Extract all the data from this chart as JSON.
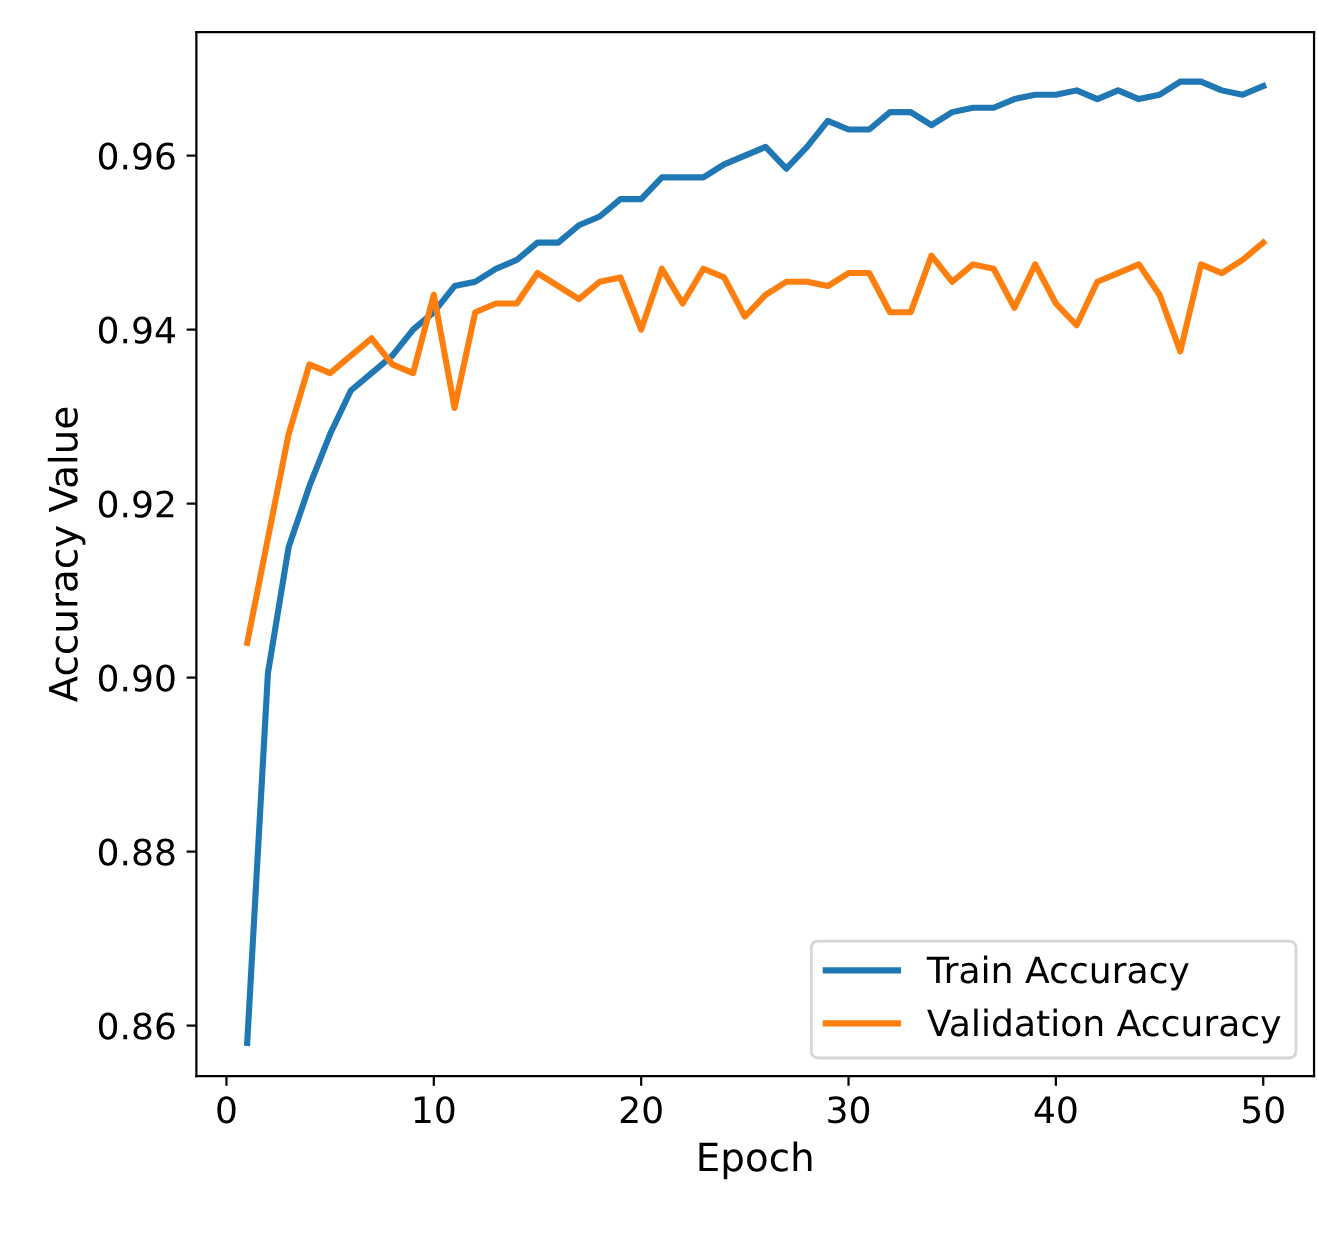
{
  "chart_data": {
    "type": "line",
    "xlabel": "Epoch",
    "ylabel": "Accuracy Value",
    "x": [
      1,
      2,
      3,
      4,
      5,
      6,
      7,
      8,
      9,
      10,
      11,
      12,
      13,
      14,
      15,
      16,
      17,
      18,
      19,
      20,
      21,
      22,
      23,
      24,
      25,
      26,
      27,
      28,
      29,
      30,
      31,
      32,
      33,
      34,
      35,
      36,
      37,
      38,
      39,
      40,
      41,
      42,
      43,
      44,
      45,
      46,
      47,
      48,
      49,
      50
    ],
    "series": [
      {
        "name": "Train Accuracy",
        "color": "#1f77b4",
        "values": [
          0.858,
          0.9005,
          0.915,
          0.922,
          0.928,
          0.933,
          0.935,
          0.937,
          0.94,
          0.942,
          0.945,
          0.9455,
          0.947,
          0.948,
          0.95,
          0.95,
          0.952,
          0.953,
          0.955,
          0.955,
          0.9575,
          0.9575,
          0.9575,
          0.959,
          0.96,
          0.961,
          0.9585,
          0.961,
          0.964,
          0.963,
          0.963,
          0.965,
          0.965,
          0.9635,
          0.965,
          0.9655,
          0.9655,
          0.9665,
          0.967,
          0.967,
          0.9675,
          0.9665,
          0.9675,
          0.9665,
          0.967,
          0.9685,
          0.9685,
          0.9675,
          0.967,
          0.968
        ]
      },
      {
        "name": "Validation Accuracy",
        "color": "#ff7f0e",
        "values": [
          0.904,
          0.916,
          0.928,
          0.936,
          0.935,
          0.937,
          0.939,
          0.936,
          0.935,
          0.944,
          0.931,
          0.942,
          0.943,
          0.943,
          0.9465,
          0.945,
          0.9435,
          0.9455,
          0.946,
          0.94,
          0.947,
          0.943,
          0.947,
          0.946,
          0.9415,
          0.944,
          0.9455,
          0.9455,
          0.945,
          0.9465,
          0.9465,
          0.942,
          0.942,
          0.9485,
          0.9455,
          0.9475,
          0.947,
          0.9425,
          0.9475,
          0.943,
          0.9405,
          0.9455,
          0.9465,
          0.9475,
          0.944,
          0.9375,
          0.9475,
          0.9465,
          0.948,
          0.95
        ]
      }
    ],
    "xlim": [
      -1.45,
      52.45
    ],
    "ylim": [
      0.8542,
      0.9742
    ],
    "xticks": [
      0,
      10,
      20,
      30,
      40,
      50
    ],
    "yticks": [
      {
        "value": 0.86,
        "label": "0.86"
      },
      {
        "value": 0.88,
        "label": "0.88"
      },
      {
        "value": 0.9,
        "label": "0.90"
      },
      {
        "value": 0.92,
        "label": "0.92"
      },
      {
        "value": 0.94,
        "label": "0.94"
      },
      {
        "value": 0.96,
        "label": "0.96"
      }
    ],
    "legend": "lower right",
    "grid": false
  }
}
